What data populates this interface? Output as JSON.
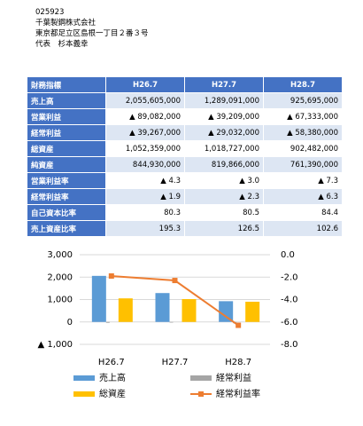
{
  "header": {
    "lines": [
      "025923",
      "千葉製鋼株式会社",
      "東京都足立区島根一丁目２番３号",
      "代表　杉本義幸"
    ]
  },
  "table": {
    "header": [
      "財務指標",
      "H26.7",
      "H27.7",
      "H28.7"
    ],
    "rows": [
      [
        "売上高",
        "2,055,605,000",
        "1,289,091,000",
        "925,695,000"
      ],
      [
        "営業利益",
        "▲ 89,082,000",
        "▲ 39,209,000",
        "▲ 67,333,000"
      ],
      [
        "経常利益",
        "▲ 39,267,000",
        "▲ 29,032,000",
        "▲ 58,380,000"
      ],
      [
        "総資産",
        "1,052,359,000",
        "1,018,727,000",
        "902,482,000"
      ],
      [
        "純資産",
        "844,930,000",
        "819,866,000",
        "761,390,000"
      ],
      [
        "営業利益率",
        "▲ 4.3",
        "▲ 3.0",
        "▲ 7.3"
      ],
      [
        "経常利益率",
        "▲ 1.9",
        "▲ 2.3",
        "▲ 6.3"
      ],
      [
        "自己資本比率",
        "80.3",
        "80.5",
        "84.4"
      ],
      [
        "売上資産比率",
        "195.3",
        "126.5",
        "102.6"
      ]
    ]
  },
  "chart_data": {
    "type": "bar",
    "categories": [
      "H26.7",
      "H27.7",
      "H28.7"
    ],
    "series": [
      {
        "name": "売上高",
        "color": "#5b9bd5",
        "values": [
          2056,
          1289,
          926
        ]
      },
      {
        "name": "経常利益",
        "color": "#a5a5a5",
        "values": [
          -39,
          -29,
          -58
        ]
      },
      {
        "name": "総資産",
        "color": "#ffc000",
        "values": [
          1052,
          1019,
          902
        ]
      },
      {
        "name": "経常利益率",
        "color": "#ed7d31",
        "type": "line",
        "axis": "y2",
        "values": [
          -1.9,
          -2.3,
          -6.3
        ]
      }
    ],
    "ylim": [
      -1000,
      3000
    ],
    "yticks": [
      {
        "value": 3000,
        "label": "3,000"
      },
      {
        "value": 2000,
        "label": "2,000"
      },
      {
        "value": 1000,
        "label": "1,000"
      },
      0,
      {
        "value": -1000,
        "label": "▲ 1,000"
      }
    ],
    "y2lim": [
      -8,
      0
    ],
    "y2ticks": [
      {
        "value": 0,
        "label": "0.0"
      },
      {
        "value": -2,
        "label": "-2.0"
      },
      {
        "value": -4,
        "label": "-4.0"
      },
      {
        "value": -6,
        "label": "-6.0"
      },
      {
        "value": -8,
        "label": "-8.0"
      }
    ],
    "grid": true
  }
}
